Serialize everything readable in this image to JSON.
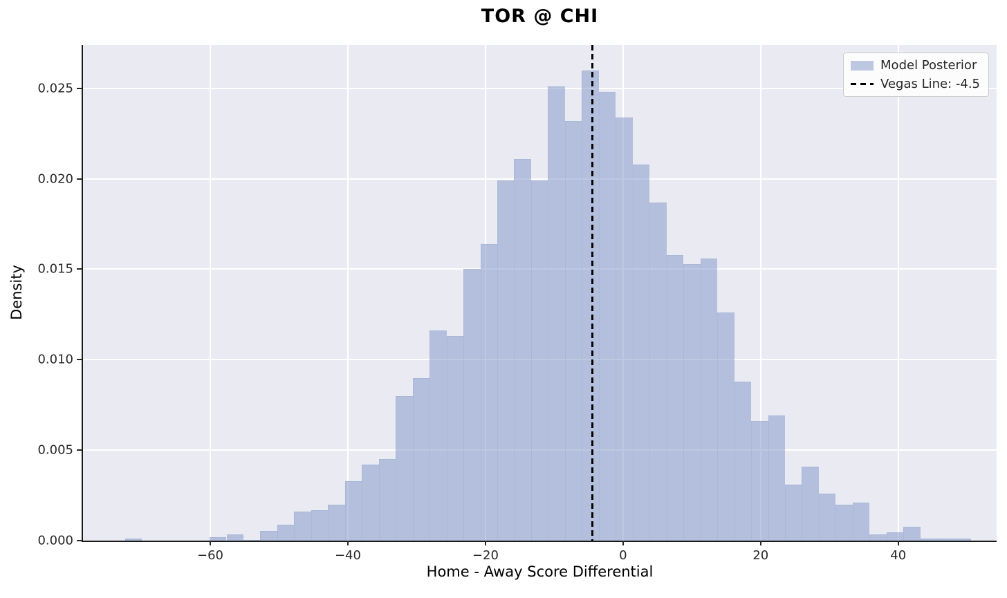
{
  "figure": {
    "title": "TOR @ CHI",
    "xlabel": "Home - Away Score Differential",
    "ylabel": "Density"
  },
  "legend": {
    "items": [
      {
        "label": "Model Posterior",
        "swatch": "patch"
      },
      {
        "label": "Vegas Line: -4.5",
        "swatch": "dashed-line"
      }
    ]
  },
  "colors": {
    "panel_bg": "#eaeaf2",
    "gridline": "#ffffff",
    "bar_fill": "rgba(124,148,198,0.5)",
    "spine": "#1a1a1a",
    "tick_mark": "#262626",
    "tick_text": "#262626",
    "vegas_line": "#000000",
    "legend_patch": "#bdc7e2",
    "legend_dash": "#000000"
  },
  "chart_data": {
    "type": "bar",
    "subtype": "histogram",
    "title": "TOR @ CHI",
    "xlabel": "Home - Away Score Differential",
    "ylabel": "Density",
    "series_name": "Model Posterior",
    "xlim": [
      -78.5,
      54.3
    ],
    "ylim": [
      0,
      0.0274
    ],
    "x_ticks": [
      -60,
      -40,
      -20,
      0,
      20,
      40
    ],
    "x_tick_labels": [
      "−60",
      "−40",
      "−20",
      "0",
      "20",
      "40"
    ],
    "y_ticks": [
      0.0,
      0.005,
      0.01,
      0.015,
      0.02,
      0.025
    ],
    "y_tick_labels": [
      "0.000",
      "0.005",
      "0.010",
      "0.015",
      "0.020",
      "0.025"
    ],
    "grid": true,
    "legend_position": "upper right",
    "bin_start": -72.4,
    "bin_width": 2.46,
    "densities": [
      0.0001,
      0,
      0,
      0,
      0,
      0.0002,
      0.00036,
      5e-05,
      0.00053,
      0.00088,
      0.0016,
      0.0017,
      0.002,
      0.0033,
      0.0042,
      0.0045,
      0.008,
      0.009,
      0.0116,
      0.0113,
      0.015,
      0.0164,
      0.0199,
      0.0211,
      0.0199,
      0.0251,
      0.0232,
      0.026,
      0.0248,
      0.0234,
      0.0208,
      0.0187,
      0.0158,
      0.0153,
      0.0156,
      0.0126,
      0.0088,
      0.0066,
      0.0069,
      0.0031,
      0.0041,
      0.0026,
      0.002,
      0.0021,
      0.00034,
      0.00046,
      0.00076,
      0.00012,
      0.00012,
      0.00012
    ],
    "vline": {
      "x": -4.5,
      "label": "Vegas Line: -4.5",
      "style": "dashed"
    }
  }
}
